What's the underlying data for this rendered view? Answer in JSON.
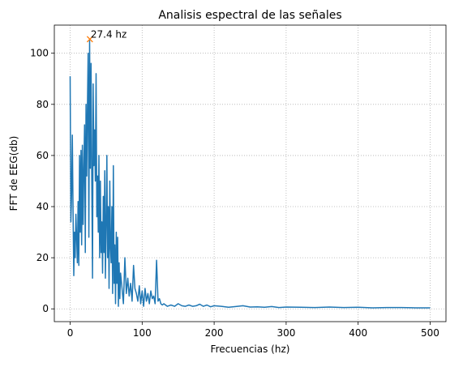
{
  "chart_data": {
    "type": "line",
    "title": "Analisis espectral de las señales",
    "xlabel": "Frecuencias (hz)",
    "ylabel": "FFT de EEG(db)",
    "xlim": [
      -22,
      522
    ],
    "ylim": [
      -5,
      111
    ],
    "xticks": [
      0,
      100,
      200,
      300,
      400,
      500
    ],
    "yticks": [
      0,
      20,
      40,
      60,
      80,
      100
    ],
    "xtick_labels": [
      "0",
      "100",
      "200",
      "300",
      "400",
      "500"
    ],
    "ytick_labels": [
      "0",
      "20",
      "40",
      "60",
      "80",
      "100"
    ],
    "grid": true,
    "colors": {
      "line": "#1f77b4",
      "marker": "#ff7f0e",
      "grid": "#b0b0b0"
    },
    "series": [
      {
        "values_x": [
          0,
          1,
          2,
          3,
          4,
          5,
          6,
          7,
          8,
          9,
          10,
          11,
          12,
          13,
          14,
          15,
          16,
          17,
          18,
          19,
          20,
          21,
          22,
          23,
          24,
          25,
          26,
          27,
          28,
          29,
          30,
          31,
          32,
          33,
          34,
          35,
          36,
          37,
          38,
          39,
          40,
          41,
          42,
          43,
          44,
          45,
          46,
          47,
          48,
          49,
          50,
          51,
          52,
          53,
          54,
          55,
          56,
          57,
          58,
          59,
          60,
          61,
          62,
          63,
          64,
          65,
          66,
          67,
          68,
          69,
          70,
          72,
          74,
          76,
          78,
          80,
          82,
          84,
          86,
          88,
          90,
          92,
          94,
          96,
          98,
          100,
          102,
          104,
          106,
          108,
          110,
          112,
          114,
          116,
          118,
          120,
          122,
          124,
          126,
          128,
          130,
          135,
          140,
          145,
          150,
          155,
          160,
          165,
          170,
          175,
          180,
          185,
          190,
          195,
          200,
          210,
          220,
          230,
          240,
          250,
          260,
          270,
          280,
          290,
          300,
          320,
          340,
          360,
          380,
          400,
          420,
          440,
          460,
          480,
          500
        ],
        "values_y": [
          91,
          34,
          45,
          68,
          38,
          13,
          30,
          20,
          37,
          28,
          18,
          42,
          17,
          60,
          30,
          62,
          25,
          64,
          33,
          55,
          72,
          22,
          80,
          52,
          78,
          100,
          28,
          105,
          55,
          96,
          50,
          12,
          88,
          56,
          70,
          50,
          92,
          36,
          52,
          30,
          60,
          20,
          50,
          22,
          34,
          14,
          44,
          22,
          54,
          12,
          32,
          60,
          20,
          40,
          8,
          50,
          24,
          18,
          40,
          6,
          56,
          10,
          25,
          2,
          30,
          10,
          28,
          1,
          18,
          4,
          14,
          8,
          2,
          20,
          6,
          12,
          5,
          10,
          3,
          17,
          8,
          6,
          3,
          9,
          2,
          7,
          1,
          8,
          3,
          6,
          2,
          7,
          4,
          5,
          2,
          19,
          3,
          4,
          2,
          1.5,
          2,
          1,
          1.5,
          1,
          2,
          1.2,
          1,
          1.5,
          1,
          1.2,
          1.8,
          1,
          1.5,
          0.8,
          1.2,
          1,
          0.6,
          0.9,
          1.2,
          0.7,
          0.8,
          0.6,
          0.9,
          0.5,
          0.7,
          0.6,
          0.5,
          0.7,
          0.5,
          0.6,
          0.4,
          0.5,
          0.5,
          0.4,
          0.4
        ]
      }
    ],
    "annotation": {
      "x": 27.4,
      "y": 105.5,
      "label": "27.4 hz"
    }
  }
}
